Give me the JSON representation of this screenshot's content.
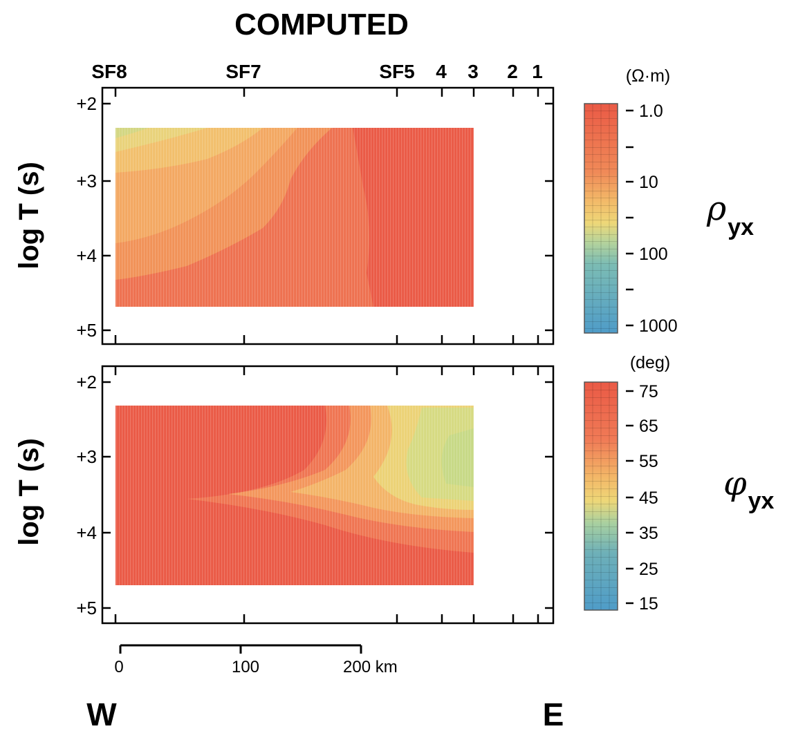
{
  "title": "COMPUTED",
  "stations": [
    {
      "label": "SF8"
    },
    {
      "label": "SF7"
    },
    {
      "label": "SF5"
    },
    {
      "label": "4"
    },
    {
      "label": "3"
    },
    {
      "label": "2"
    },
    {
      "label": "1"
    }
  ],
  "scale_bar": {
    "labels": [
      "0",
      "100",
      "200 km"
    ]
  },
  "compass": {
    "west": "W",
    "east": "E"
  },
  "colors": {
    "red": "#ea5a46",
    "orange": "#f4955a",
    "yellow_orange": "#f3b868",
    "yellow": "#eed778",
    "green_yellow": "#c8dc86",
    "cyan_green": "#99ccaa",
    "teal": "#6eb4b8",
    "blue": "#4f9cc8"
  },
  "chart_data": [
    {
      "type": "heatmap",
      "title": "",
      "ylabel": "log T (s)",
      "yticks": [
        "+2",
        "+3",
        "+4",
        "+5"
      ],
      "ylim": [
        2,
        5
      ],
      "data_range_logT": [
        2.3,
        4.7
      ],
      "colorbar": {
        "unit": "(Ω·m)",
        "ticks": [
          "1.0",
          "10",
          "100",
          "1000"
        ],
        "symbol": "ρ",
        "subscript": "yx"
      }
    },
    {
      "type": "heatmap",
      "title": "",
      "ylabel": "log T (s)",
      "yticks": [
        "+2",
        "+3",
        "+4",
        "+5"
      ],
      "ylim": [
        2,
        5
      ],
      "data_range_logT": [
        2.3,
        4.7
      ],
      "colorbar": {
        "unit": "(deg)",
        "ticks": [
          "75",
          "65",
          "55",
          "45",
          "35",
          "25",
          "15"
        ],
        "symbol": "φ",
        "subscript": "yx"
      }
    }
  ]
}
